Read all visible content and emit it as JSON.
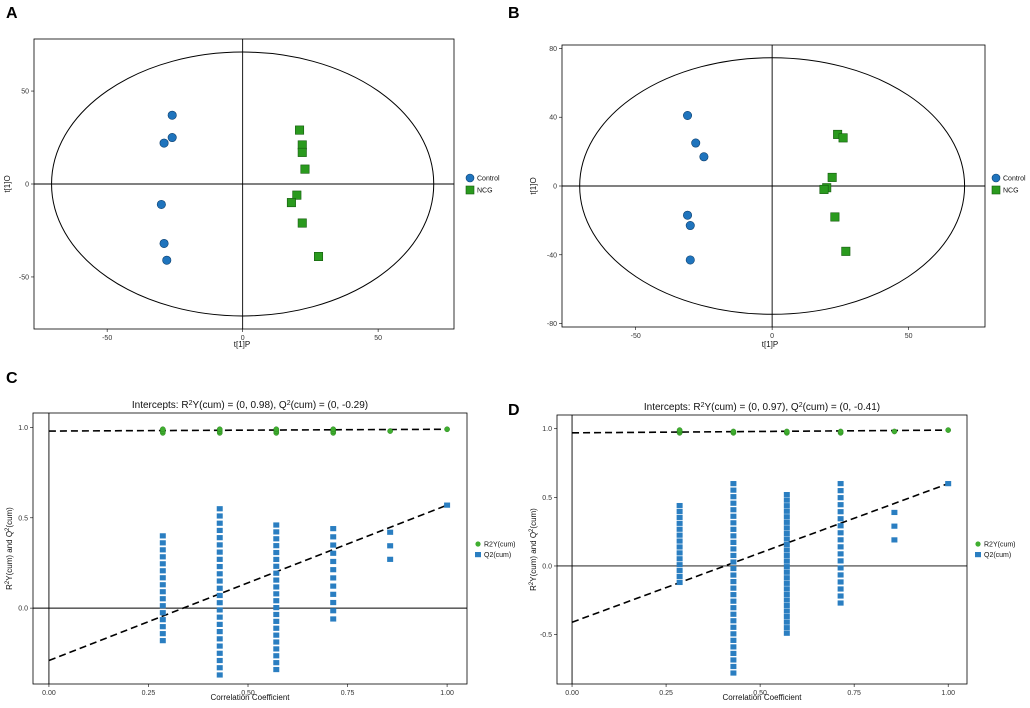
{
  "panels": [
    {
      "letter": "A"
    },
    {
      "letter": "B"
    },
    {
      "letter": "C"
    },
    {
      "letter": "D"
    }
  ],
  "colors": {
    "control": "#1f74bd",
    "ncg": "#2a9a1e",
    "r2y": "#3fae2f",
    "q2": "#2a7ec1",
    "axis": "#000000"
  },
  "chart_data": [
    {
      "id": "A",
      "type": "scatter",
      "xlabel": "t[1]P",
      "ylabel": "t[1]O",
      "xlim": [
        -77,
        78
      ],
      "ylim": [
        -78,
        78
      ],
      "xticks": [
        -50,
        0,
        50
      ],
      "yticks": [
        -50,
        0,
        50
      ],
      "legend": [
        "Control",
        "NCG"
      ],
      "series": [
        {
          "name": "Control",
          "shape": "circle",
          "points": [
            [
              -26,
              37
            ],
            [
              -26,
              25
            ],
            [
              -29,
              22
            ],
            [
              -30,
              -11
            ],
            [
              -29,
              -32
            ],
            [
              -28,
              -41
            ]
          ]
        },
        {
          "name": "NCG",
          "shape": "square",
          "points": [
            [
              21,
              29
            ],
            [
              22,
              21
            ],
            [
              22,
              17
            ],
            [
              23,
              8
            ],
            [
              20,
              -6
            ],
            [
              18,
              -10
            ],
            [
              22,
              -21
            ],
            [
              28,
              -39
            ]
          ]
        }
      ]
    },
    {
      "id": "B",
      "type": "scatter",
      "xlabel": "t[1]P",
      "ylabel": "t[1]O",
      "xlim": [
        -77,
        78
      ],
      "ylim": [
        -82,
        82
      ],
      "xticks": [
        -50,
        0,
        50
      ],
      "yticks": [
        -80,
        -40,
        0,
        40,
        80
      ],
      "legend": [
        "Control",
        "NCG"
      ],
      "series": [
        {
          "name": "Control",
          "shape": "circle",
          "points": [
            [
              -31,
              41
            ],
            [
              -28,
              25
            ],
            [
              -25,
              17
            ],
            [
              -31,
              -17
            ],
            [
              -30,
              -23
            ],
            [
              -30,
              -43
            ]
          ]
        },
        {
          "name": "NCG",
          "shape": "square",
          "points": [
            [
              24,
              30
            ],
            [
              26,
              28
            ],
            [
              22,
              5
            ],
            [
              20,
              -1
            ],
            [
              19,
              -2
            ],
            [
              23,
              -18
            ],
            [
              27,
              -38
            ]
          ]
        }
      ]
    },
    {
      "id": "C",
      "type": "scatter",
      "title_prefix": "Intercepts: R",
      "title_sup1": "2",
      "title_mid": "Y(cum) = (0, 0.98), Q",
      "title_sup2": "2",
      "title_suffix": "(cum) = (0, -0.29)",
      "xlabel": "Correlation Coefficient",
      "ylabel_a": "R",
      "ylabel_b": "Y(cum) and Q",
      "ylabel_c": "(cum)",
      "xlim": [
        -0.04,
        1.05
      ],
      "ylim": [
        -0.42,
        1.08
      ],
      "xticks": [
        0.0,
        0.25,
        0.5,
        0.75,
        1.0
      ],
      "xticklabels": [
        "0.00",
        "0.25",
        "0.50",
        "0.75",
        "1.00"
      ],
      "yticks": [
        0.0,
        0.5,
        1.0
      ],
      "yticklabels": [
        "0.0",
        "0.5",
        "1.0"
      ],
      "legend": [
        "R2Y(cum)",
        "Q2(cum)"
      ],
      "r2y_line": [
        [
          0,
          0.98
        ],
        [
          1,
          0.99
        ]
      ],
      "q2_line": [
        [
          0,
          -0.29
        ],
        [
          1,
          0.57
        ]
      ],
      "r2y_points": [
        [
          0.286,
          0.97
        ],
        [
          0.286,
          0.98
        ],
        [
          0.286,
          0.99
        ],
        [
          0.429,
          0.97
        ],
        [
          0.429,
          0.98
        ],
        [
          0.429,
          0.99
        ],
        [
          0.571,
          0.97
        ],
        [
          0.571,
          0.98
        ],
        [
          0.571,
          0.99
        ],
        [
          0.714,
          0.97
        ],
        [
          0.714,
          0.98
        ],
        [
          0.714,
          0.99
        ],
        [
          0.857,
          0.98
        ],
        [
          1.0,
          0.99
        ]
      ],
      "q2_columns": [
        {
          "x": 0.286,
          "min": -0.18,
          "max": 0.4,
          "n": 16
        },
        {
          "x": 0.429,
          "min": -0.37,
          "max": 0.55,
          "n": 24
        },
        {
          "x": 0.571,
          "min": -0.34,
          "max": 0.46,
          "n": 22
        },
        {
          "x": 0.714,
          "min": -0.06,
          "max": 0.44,
          "n": 12
        },
        {
          "x": 0.857,
          "min": 0.27,
          "max": 0.42,
          "n": 3
        }
      ],
      "q2_final": [
        1.0,
        0.57
      ]
    },
    {
      "id": "D",
      "type": "scatter",
      "title_prefix": "Intercepts: R",
      "title_sup1": "2",
      "title_mid": "Y(cum) = (0, 0.97), Q",
      "title_sup2": "2",
      "title_suffix": "(cum) = (0, -0.41)",
      "xlabel": "Correlation Coefficient",
      "ylabel_a": "R",
      "ylabel_b": "Y(cum) and Q",
      "ylabel_c": "(cum)",
      "xlim": [
        -0.04,
        1.05
      ],
      "ylim": [
        -0.86,
        1.1
      ],
      "xticks": [
        0.0,
        0.25,
        0.5,
        0.75,
        1.0
      ],
      "xticklabels": [
        "0.00",
        "0.25",
        "0.50",
        "0.75",
        "1.00"
      ],
      "yticks": [
        -0.5,
        0.0,
        0.5,
        1.0
      ],
      "yticklabels": [
        "-0.5",
        "0.0",
        "0.5",
        "1.0"
      ],
      "legend": [
        "R2Y(cum)",
        "Q2(cum)"
      ],
      "r2y_line": [
        [
          0,
          0.97
        ],
        [
          1,
          0.99
        ]
      ],
      "q2_line": [
        [
          0,
          -0.41
        ],
        [
          1,
          0.6
        ]
      ],
      "r2y_points": [
        [
          0.286,
          0.97
        ],
        [
          0.286,
          0.98
        ],
        [
          0.286,
          0.99
        ],
        [
          0.429,
          0.97
        ],
        [
          0.429,
          0.98
        ],
        [
          0.571,
          0.97
        ],
        [
          0.571,
          0.98
        ],
        [
          0.714,
          0.97
        ],
        [
          0.714,
          0.98
        ],
        [
          0.857,
          0.98
        ],
        [
          1.0,
          0.99
        ]
      ],
      "q2_columns": [
        {
          "x": 0.286,
          "min": -0.12,
          "max": 0.44,
          "n": 14
        },
        {
          "x": 0.429,
          "min": -0.78,
          "max": 0.6,
          "n": 30
        },
        {
          "x": 0.571,
          "min": -0.49,
          "max": 0.52,
          "n": 26
        },
        {
          "x": 0.714,
          "min": -0.27,
          "max": 0.6,
          "n": 18
        },
        {
          "x": 0.857,
          "min": 0.19,
          "max": 0.39,
          "n": 3
        }
      ],
      "q2_final": [
        1.0,
        0.6
      ]
    }
  ]
}
